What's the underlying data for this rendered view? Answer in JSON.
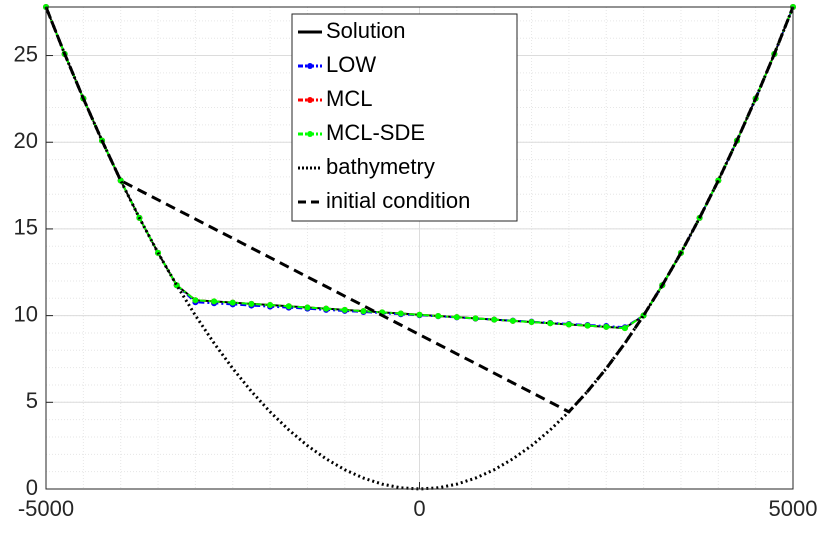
{
  "chart_data": {
    "type": "line",
    "x": [
      -5000,
      -4750,
      -4500,
      -4250,
      -4000,
      -3750,
      -3500,
      -3250,
      -3000,
      -2750,
      -2500,
      -2250,
      -2000,
      -1750,
      -1500,
      -1250,
      -1000,
      -750,
      -500,
      -250,
      0,
      250,
      500,
      750,
      1000,
      1250,
      1500,
      1750,
      2000,
      2250,
      2500,
      2750,
      3000,
      3250,
      3500,
      3750,
      4000,
      4250,
      4500,
      4750,
      5000
    ],
    "series": [
      {
        "name": "Solution",
        "color": "#000000",
        "style": "solid",
        "marker": false,
        "values": [
          27.8,
          25.09,
          22.52,
          20.09,
          17.79,
          15.64,
          13.62,
          11.75,
          10.89,
          10.82,
          10.75,
          10.68,
          10.61,
          10.54,
          10.47,
          10.4,
          10.33,
          10.26,
          10.19,
          10.12,
          10.05,
          9.98,
          9.91,
          9.84,
          9.77,
          9.7,
          9.63,
          9.56,
          9.49,
          9.42,
          9.35,
          9.28,
          10.01,
          11.75,
          13.62,
          15.64,
          17.79,
          20.09,
          22.52,
          25.09,
          27.8
        ]
      },
      {
        "name": "LOW",
        "color": "#0000ff",
        "style": "dashdot",
        "marker": true,
        "values": [
          27.8,
          25.09,
          22.52,
          20.09,
          17.79,
          15.64,
          13.62,
          11.75,
          10.77,
          10.71,
          10.65,
          10.58,
          10.52,
          10.46,
          10.4,
          10.33,
          10.27,
          10.21,
          10.15,
          10.08,
          10.02,
          9.96,
          9.9,
          9.83,
          9.77,
          9.71,
          9.65,
          9.58,
          9.52,
          9.46,
          9.4,
          9.33,
          10.01,
          11.75,
          13.62,
          15.64,
          17.79,
          20.09,
          22.52,
          25.09,
          27.8
        ]
      },
      {
        "name": "MCL",
        "color": "#ff0000",
        "style": "dashdot",
        "marker": true,
        "values": [
          27.8,
          25.09,
          22.52,
          20.09,
          17.79,
          15.64,
          13.62,
          11.75,
          10.89,
          10.82,
          10.75,
          10.68,
          10.61,
          10.54,
          10.47,
          10.4,
          10.33,
          10.26,
          10.19,
          10.12,
          10.05,
          9.98,
          9.91,
          9.84,
          9.77,
          9.7,
          9.63,
          9.56,
          9.49,
          9.42,
          9.35,
          9.28,
          10.01,
          11.75,
          13.62,
          15.64,
          17.79,
          20.09,
          22.52,
          25.09,
          27.8
        ]
      },
      {
        "name": "MCL-SDE",
        "color": "#00ff00",
        "style": "dashdot",
        "marker": true,
        "values": [
          27.8,
          25.09,
          22.52,
          20.09,
          17.79,
          15.64,
          13.62,
          11.75,
          10.89,
          10.82,
          10.75,
          10.68,
          10.61,
          10.54,
          10.47,
          10.4,
          10.33,
          10.26,
          10.19,
          10.12,
          10.05,
          9.98,
          9.91,
          9.84,
          9.77,
          9.7,
          9.63,
          9.56,
          9.49,
          9.42,
          9.35,
          9.28,
          10.01,
          11.75,
          13.62,
          15.64,
          17.79,
          20.09,
          22.52,
          25.09,
          27.8
        ]
      },
      {
        "name": "bathymetry",
        "color": "#000000",
        "style": "dotted",
        "marker": false,
        "values": [
          27.8,
          25.09,
          22.52,
          20.09,
          17.79,
          15.64,
          13.62,
          11.75,
          10.01,
          8.41,
          6.95,
          5.63,
          4.45,
          3.41,
          2.5,
          1.74,
          1.11,
          0.63,
          0.28,
          0.07,
          0,
          0.07,
          0.28,
          0.63,
          1.11,
          1.74,
          2.5,
          3.41,
          4.45,
          5.63,
          6.95,
          8.41,
          10.01,
          11.75,
          13.62,
          15.64,
          17.79,
          20.09,
          22.52,
          25.09,
          27.8
        ]
      },
      {
        "name": "initial condition",
        "color": "#000000",
        "style": "dashed",
        "marker": false,
        "values": [
          27.8,
          25.09,
          22.52,
          20.09,
          17.79,
          17.23,
          16.68,
          16.12,
          15.57,
          15.01,
          14.46,
          13.9,
          13.35,
          12.79,
          12.23,
          11.68,
          11.12,
          10.57,
          10.01,
          9.46,
          8.9,
          8.35,
          7.79,
          7.24,
          6.68,
          6.12,
          5.57,
          5.01,
          4.45,
          5.63,
          6.95,
          8.41,
          10.01,
          11.75,
          13.62,
          15.64,
          17.79,
          20.09,
          22.52,
          25.09,
          27.8
        ]
      }
    ],
    "xlim": [
      -5000,
      5000
    ],
    "xticks": [
      -5000,
      0,
      5000
    ],
    "ylim": [
      0,
      27.8
    ],
    "yticks": [
      0,
      5,
      10,
      15,
      20,
      25
    ],
    "grid": true,
    "minor_grid": true,
    "legend": "top"
  }
}
